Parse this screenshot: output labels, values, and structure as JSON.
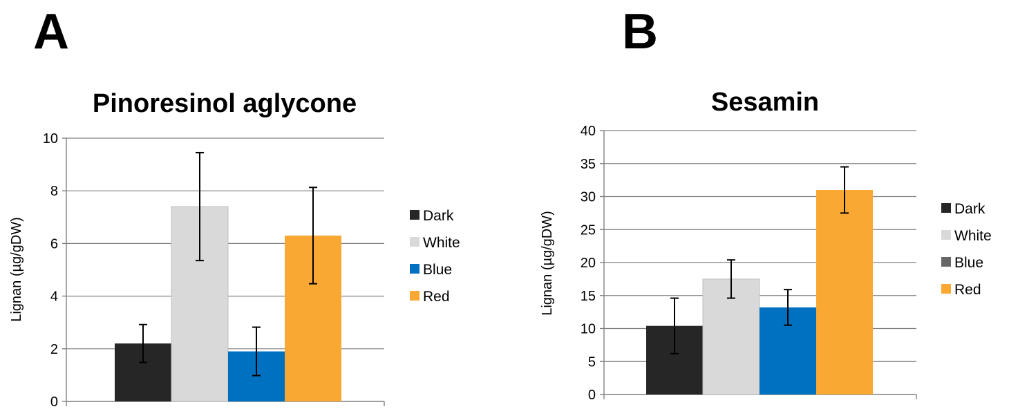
{
  "panels": [
    {
      "letter": "A",
      "chart_data": {
        "type": "bar",
        "title": "Pinoresinol aglycone",
        "ylabel": "Lignan (µg/gDW)",
        "xlabel": "",
        "ylim": [
          0,
          10
        ],
        "yticks": [
          0,
          2,
          4,
          6,
          8,
          10
        ],
        "grid": true,
        "legend": "right",
        "categories": [
          "Dark",
          "White",
          "Blue",
          "Red"
        ],
        "values": [
          2.2,
          7.4,
          1.9,
          6.3
        ],
        "errors": [
          0.72,
          2.05,
          0.92,
          1.83
        ],
        "colors": [
          "#262626",
          "#d9d9d9",
          "#0070c0",
          "#f9a833"
        ]
      }
    },
    {
      "letter": "B",
      "chart_data": {
        "type": "bar",
        "title": "Sesamin",
        "ylabel": "Lignan (µg/gDW)",
        "xlabel": "",
        "ylim": [
          0,
          40
        ],
        "yticks": [
          0,
          5,
          10,
          15,
          20,
          25,
          30,
          35,
          40
        ],
        "grid": true,
        "legend": "right",
        "categories": [
          "Dark",
          "White",
          "Blue",
          "Red"
        ],
        "values": [
          10.4,
          17.5,
          13.2,
          31.0
        ],
        "errors": [
          4.2,
          2.9,
          2.7,
          3.5
        ],
        "colors": [
          "#262626",
          "#d9d9d9",
          "#0070c0",
          "#f9a833"
        ],
        "legend_colors": [
          "#262626",
          "#d9d9d9",
          "#666666",
          "#f9a833"
        ]
      }
    }
  ]
}
